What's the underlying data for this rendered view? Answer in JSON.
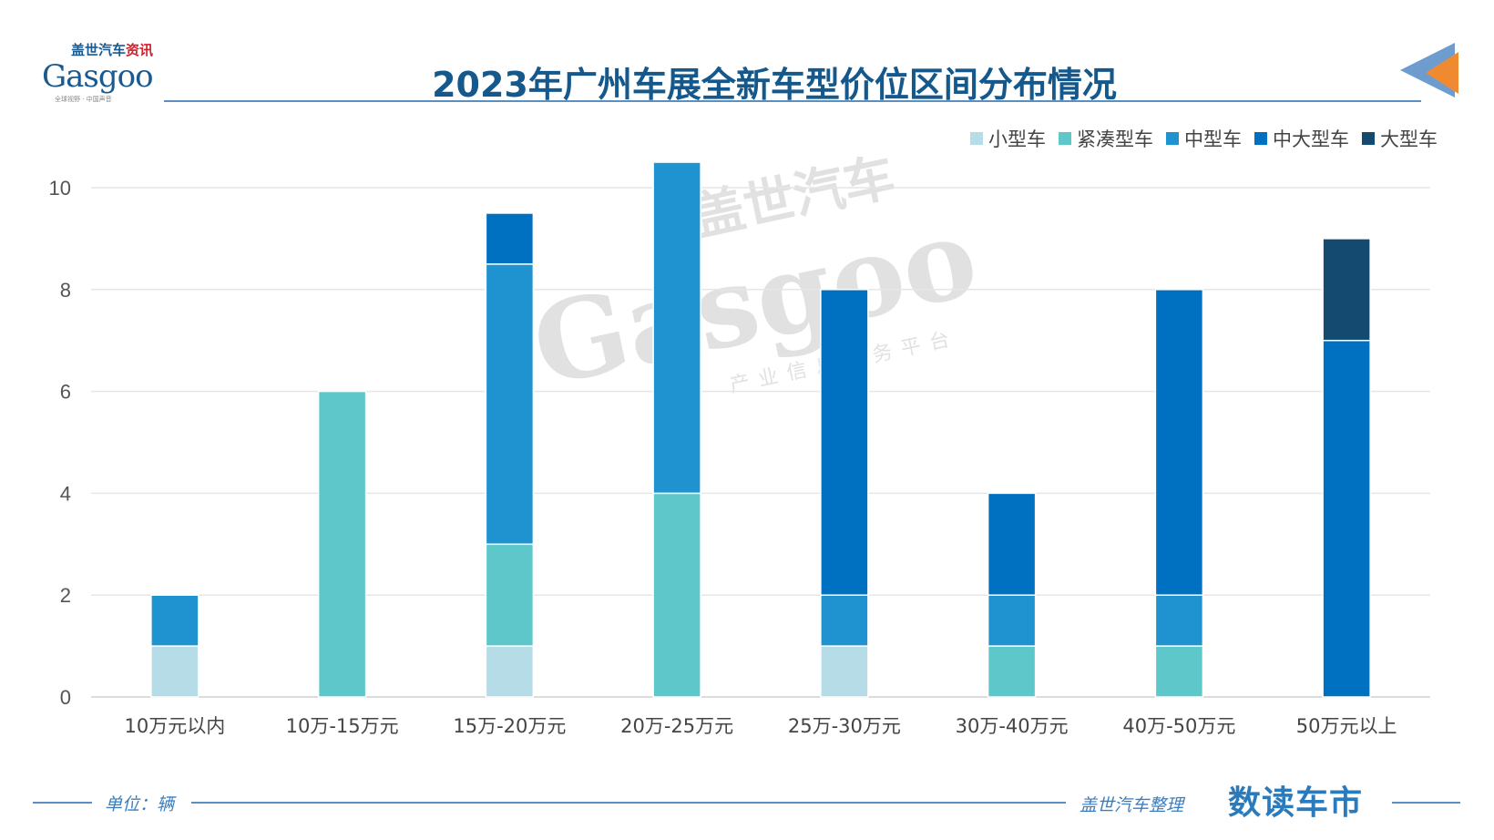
{
  "logo": {
    "cn_blue": "盖世汽车",
    "cn_red": "资讯",
    "en": "Gasgoo",
    "tagline": "全球视野 · 中国声音"
  },
  "watermark": {
    "cn": "盖世汽车",
    "en": "Gasgoo",
    "sub": "产业信息服务平台"
  },
  "footer": {
    "unit": "单位：辆",
    "source": "盖世汽车整理",
    "brand": "数读车市"
  },
  "chart_data": {
    "type": "bar",
    "stacked": true,
    "title": "2023年广州车展全新车型价位区间分布情况",
    "xlabel": "",
    "ylabel": "",
    "ylim": [
      0,
      11
    ],
    "yticks": [
      0,
      2,
      4,
      6,
      8,
      10
    ],
    "grid": true,
    "legend_position": "top-right",
    "categories": [
      "10万元以内",
      "10万-15万元",
      "15万-20万元",
      "20万-25万元",
      "25万-30万元",
      "30万-40万元",
      "40万-50万元",
      "50万元以上"
    ],
    "series": [
      {
        "name": "小型车",
        "color": "#b6dce8",
        "values": [
          1,
          0,
          1,
          0,
          1,
          0,
          0,
          0
        ]
      },
      {
        "name": "紧凑型车",
        "color": "#5ec7ca",
        "values": [
          0,
          6,
          2,
          4,
          0,
          1,
          1,
          0
        ]
      },
      {
        "name": "中型车",
        "color": "#1e93cf",
        "values": [
          1,
          0,
          5.5,
          6.5,
          1,
          1,
          1,
          0
        ]
      },
      {
        "name": "中大型车",
        "color": "#0070c0",
        "values": [
          0,
          0,
          1,
          0,
          6,
          2,
          6,
          7
        ]
      },
      {
        "name": "大型车",
        "color": "#154a70",
        "values": [
          0,
          0,
          0,
          0,
          0,
          0,
          0,
          2
        ]
      }
    ]
  }
}
